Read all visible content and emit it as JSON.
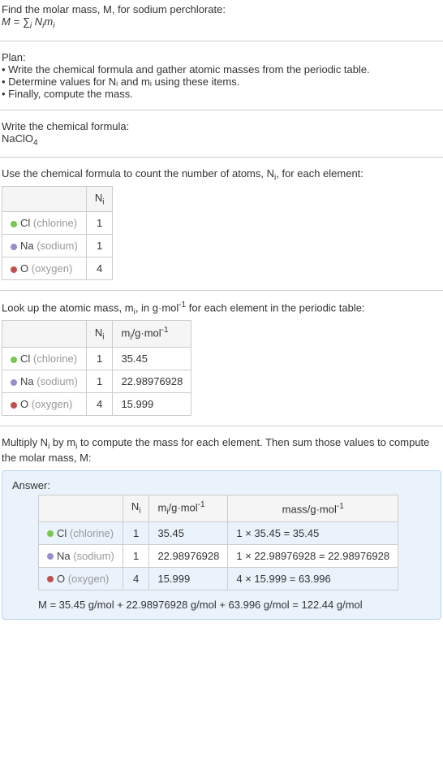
{
  "intro": {
    "line1": "Find the molar mass, M, for sodium perchlorate:",
    "line2_html": "M = ∑<sub>i</sub> N<sub>i</sub>m<sub>i</sub>"
  },
  "plan": {
    "heading": "Plan:",
    "items": [
      "• Write the chemical formula and gather atomic masses from the periodic table.",
      "• Determine values for Nᵢ and mᵢ using these items.",
      "• Finally, compute the mass."
    ]
  },
  "step1": {
    "heading": "Write the chemical formula:",
    "formula_html": "NaClO<sub>4</sub>"
  },
  "step2": {
    "heading_html": "Use the chemical formula to count the number of atoms, N<sub>i</sub>, for each element:",
    "header_ni_html": "N<sub>i</sub>",
    "rows": [
      {
        "dot": "#78c850",
        "sym": "Cl",
        "name": "(chlorine)",
        "n": "1"
      },
      {
        "dot": "#9b8cce",
        "sym": "Na",
        "name": "(sodium)",
        "n": "1"
      },
      {
        "dot": "#c0504d",
        "sym": "O",
        "name": "(oxygen)",
        "n": "4"
      }
    ]
  },
  "step3": {
    "heading_html": "Look up the atomic mass, m<sub>i</sub>, in g·mol<sup>-1</sup> for each element in the periodic table:",
    "header_ni_html": "N<sub>i</sub>",
    "header_mi_html": "m<sub>i</sub>/g·mol<sup>-1</sup>",
    "rows": [
      {
        "dot": "#78c850",
        "sym": "Cl",
        "name": "(chlorine)",
        "n": "1",
        "m": "35.45"
      },
      {
        "dot": "#9b8cce",
        "sym": "Na",
        "name": "(sodium)",
        "n": "1",
        "m": "22.98976928"
      },
      {
        "dot": "#c0504d",
        "sym": "O",
        "name": "(oxygen)",
        "n": "4",
        "m": "15.999"
      }
    ]
  },
  "step4": {
    "heading_html": "Multiply N<sub>i</sub> by m<sub>i</sub> to compute the mass for each element. Then sum those values to compute the molar mass, M:"
  },
  "answer": {
    "label": "Answer:",
    "header_ni_html": "N<sub>i</sub>",
    "header_mi_html": "m<sub>i</sub>/g·mol<sup>-1</sup>",
    "header_mass_html": "mass/g·mol<sup>-1</sup>",
    "rows": [
      {
        "dot": "#78c850",
        "sym": "Cl",
        "name": "(chlorine)",
        "n": "1",
        "m": "35.45",
        "calc": "1 × 35.45 = 35.45"
      },
      {
        "dot": "#9b8cce",
        "sym": "Na",
        "name": "(sodium)",
        "n": "1",
        "m": "22.98976928",
        "calc": "1 × 22.98976928 = 22.98976928"
      },
      {
        "dot": "#c0504d",
        "sym": "O",
        "name": "(oxygen)",
        "n": "4",
        "m": "15.999",
        "calc": "4 × 15.999 = 63.996"
      }
    ],
    "final": "M = 35.45 g/mol + 22.98976928 g/mol + 63.996 g/mol = 122.44 g/mol"
  }
}
